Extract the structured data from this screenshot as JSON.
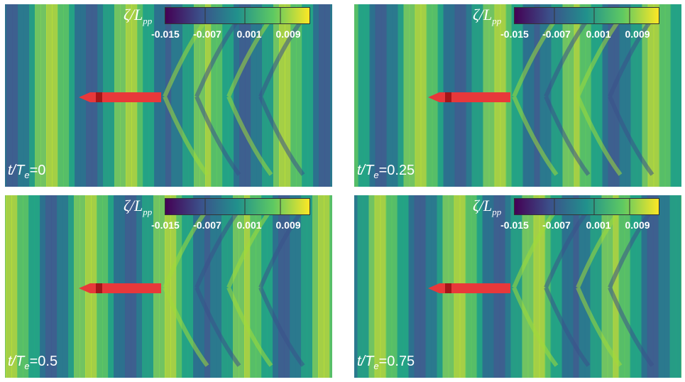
{
  "colorbar": {
    "symbol": "ζ/L",
    "subscript": "pp",
    "ticks": [
      "-0.015",
      "-0.007",
      "0.001",
      "0.009"
    ],
    "colors": [
      "#440154",
      "#3b528b",
      "#21918c",
      "#5ec962",
      "#fde725"
    ]
  },
  "panels": [
    {
      "t_prefix": "t/T",
      "t_sub": "e",
      "t_value": "=0"
    },
    {
      "t_prefix": "t/T",
      "t_sub": "e",
      "t_value": "=0.25"
    },
    {
      "t_prefix": "t/T",
      "t_sub": "e",
      "t_value": "=0.5"
    },
    {
      "t_prefix": "t/T",
      "t_sub": "e",
      "t_value": "=0.75"
    }
  ],
  "ship_color": "#e8383a"
}
